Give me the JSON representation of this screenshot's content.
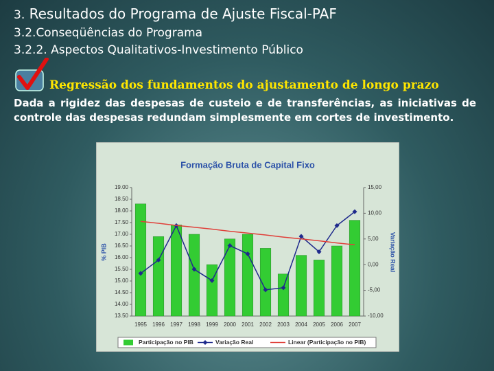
{
  "slide": {
    "title_number": "3.",
    "title": "Resultados do Programa de Ajuste Fiscal-PAF",
    "subtitle": "3.2.Conseqüências do Programa",
    "section": "3.2.2. Aspectos Qualitativos-Investimento Público",
    "heading": "Regressão dos fundamentos do ajustamento de longo prazo",
    "paragraph": "Dada a rigidez das despesas de custeio e de transferências, as iniciativas de controle das despesas redundam simplesmente em cortes de investimento."
  },
  "chart_data": {
    "type": "bar-line",
    "title": "Formação Bruta de Capital Fixo",
    "ylabel": "% PIB",
    "y2label": "Variação Real",
    "categories": [
      "1995",
      "1996",
      "1997",
      "1998",
      "1999",
      "2000",
      "2001",
      "2002",
      "2003",
      "2004",
      "2005",
      "2006",
      "2007"
    ],
    "series": [
      {
        "name": "Participação no PIB",
        "type": "bar",
        "color": "#33cc33",
        "values": [
          18.3,
          16.9,
          17.4,
          17.0,
          15.7,
          16.8,
          17.0,
          16.4,
          15.3,
          16.1,
          15.9,
          16.5,
          17.6
        ]
      },
      {
        "name": "Variação Real",
        "type": "line",
        "axis": "y2",
        "color": "#1f2a8c",
        "values": [
          -1.7,
          0.9,
          7.6,
          -0.9,
          -3.1,
          3.7,
          2.1,
          -4.9,
          -4.5,
          5.5,
          2.5,
          7.6,
          10.3
        ]
      },
      {
        "name": "Linear (Participação no PIB)",
        "type": "trend",
        "color": "#e0403a",
        "values": [
          17.55,
          17.47,
          17.38,
          17.3,
          17.22,
          17.13,
          17.05,
          16.97,
          16.88,
          16.8,
          16.72,
          16.63,
          16.55
        ]
      }
    ],
    "ylim": [
      13.5,
      19
    ],
    "yticks": [
      {
        "value": 13.5,
        "label": "13.50"
      },
      {
        "value": 14,
        "label": "14.00"
      },
      {
        "value": 14.5,
        "label": "14.50"
      },
      {
        "value": 15,
        "label": "15.00"
      },
      {
        "value": 15.5,
        "label": "15.50"
      },
      {
        "value": 16,
        "label": "16.00"
      },
      {
        "value": 16.5,
        "label": "16.50"
      },
      {
        "value": 17,
        "label": "17.00"
      },
      {
        "value": 17.5,
        "label": "17.50"
      },
      {
        "value": 18,
        "label": "18.00"
      },
      {
        "value": 18.5,
        "label": "18.50"
      },
      {
        "value": 19,
        "label": "19.00"
      }
    ],
    "y2lim": [
      -10,
      15
    ],
    "y2ticks": [
      {
        "value": -10,
        "label": "-10,00"
      },
      {
        "value": -5,
        "label": "-5,00"
      },
      {
        "value": 0,
        "label": "0,00"
      },
      {
        "value": 5,
        "label": "5,00"
      },
      {
        "value": 10,
        "label": "10,00"
      },
      {
        "value": 15,
        "label": "15,00"
      }
    ]
  }
}
